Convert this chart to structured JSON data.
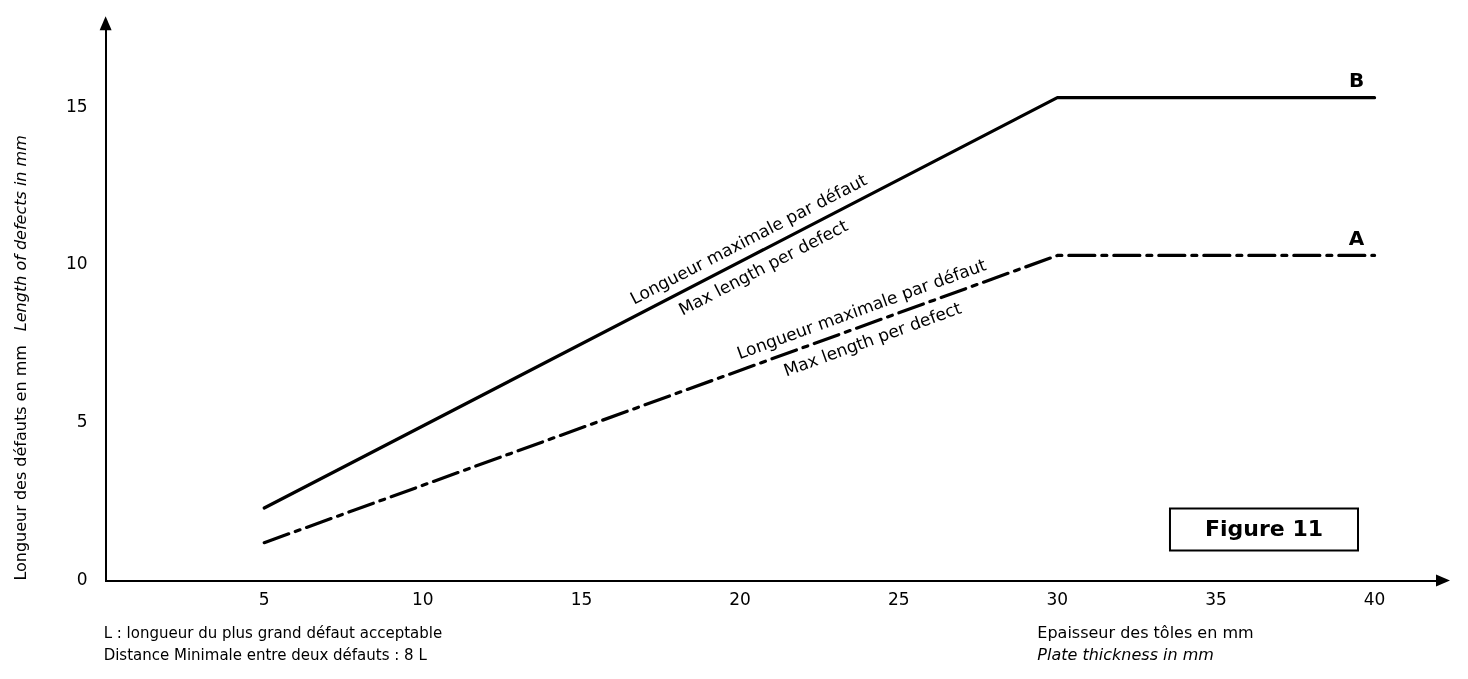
{
  "chart_data": {
    "type": "line",
    "title": "Figure 11",
    "xlabel": "Epaisseur des tôles en mm\nPlate thickness in mm",
    "ylabel": "Longueur des défauts en mm\nLength of defects in mm",
    "xlim": [
      0,
      42
    ],
    "ylim": [
      0,
      17.5
    ],
    "xticks": [
      5,
      10,
      15,
      20,
      25,
      30,
      35,
      40
    ],
    "yticks": [
      0,
      5,
      10,
      15
    ],
    "grid": false,
    "legend": false,
    "marker": "none",
    "series": [
      {
        "name": "B",
        "color": "#000000",
        "line_style": "solid",
        "x": [
          5,
          30,
          40
        ],
        "values": [
          2.3,
          15.3,
          15.3
        ]
      },
      {
        "name": "A",
        "color": "#000000",
        "line_style": "dashed",
        "x": [
          5,
          30,
          40
        ],
        "values": [
          1.2,
          10.3,
          10.3
        ]
      }
    ],
    "annotations": [
      "Longueur maximale par défaut",
      "Max length per defect",
      "Longueur maximale par défaut",
      "Max length per defect",
      "L : longueur du plus grand défaut acceptable",
      "Distance Minimale entre deux défauts : 8 L"
    ]
  }
}
